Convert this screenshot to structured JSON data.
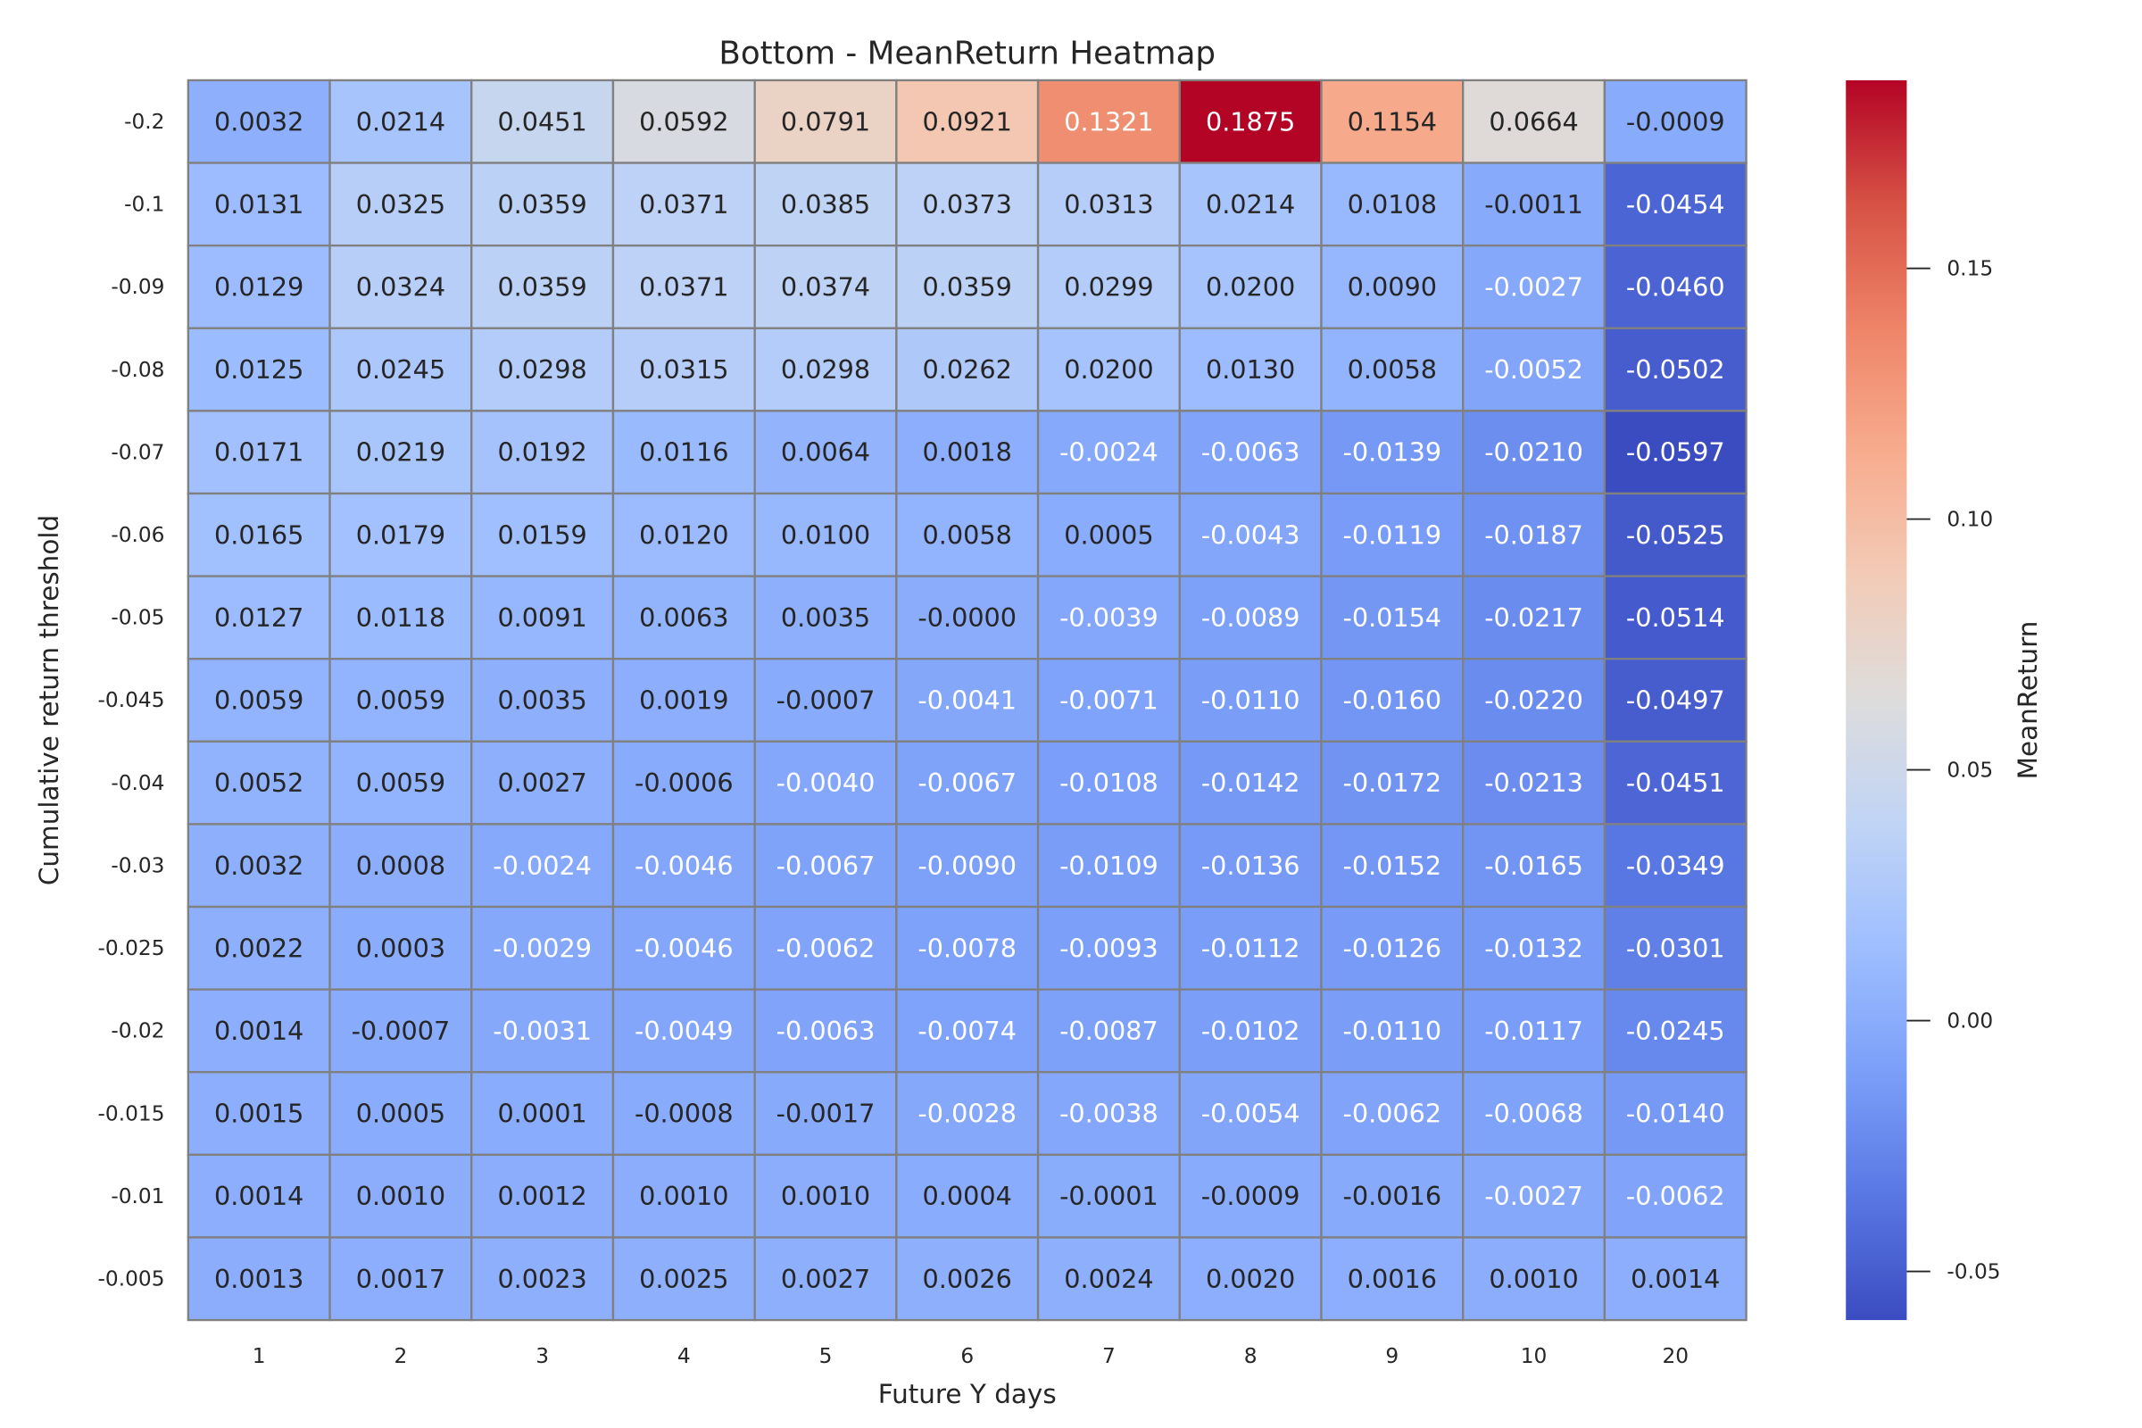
{
  "chart_data": {
    "type": "heatmap",
    "title": "Bottom - MeanReturn Heatmap",
    "xlabel": "Future Y days",
    "ylabel": "Cumulative return threshold",
    "colorbar_label": "MeanReturn",
    "colormap": "coolwarm",
    "vmin": -0.0597,
    "vmax": 0.1875,
    "colorbar_ticks": [
      0.15,
      0.1,
      0.05,
      0.0,
      -0.05
    ],
    "colorbar_tick_labels": [
      "0.15",
      "0.10",
      "0.05",
      "0.00",
      "-0.05"
    ],
    "x": [
      "1",
      "2",
      "3",
      "4",
      "5",
      "6",
      "7",
      "8",
      "9",
      "10",
      "20"
    ],
    "y": [
      "-0.2",
      "-0.1",
      "-0.09",
      "-0.08",
      "-0.07",
      "-0.06",
      "-0.05",
      "-0.045",
      "-0.04",
      "-0.03",
      "-0.025",
      "-0.02",
      "-0.015",
      "-0.01",
      "-0.005"
    ],
    "values": [
      [
        0.0032,
        0.0214,
        0.0451,
        0.0592,
        0.0791,
        0.0921,
        0.1321,
        0.1875,
        0.1154,
        0.0664,
        -0.0009
      ],
      [
        0.0131,
        0.0325,
        0.0359,
        0.0371,
        0.0385,
        0.0373,
        0.0313,
        0.0214,
        0.0108,
        -0.0011,
        -0.0454
      ],
      [
        0.0129,
        0.0324,
        0.0359,
        0.0371,
        0.0374,
        0.0359,
        0.0299,
        0.02,
        0.009,
        -0.0027,
        -0.046
      ],
      [
        0.0125,
        0.0245,
        0.0298,
        0.0315,
        0.0298,
        0.0262,
        0.02,
        0.013,
        0.0058,
        -0.0052,
        -0.0502
      ],
      [
        0.0171,
        0.0219,
        0.0192,
        0.0116,
        0.0064,
        0.0018,
        -0.0024,
        -0.0063,
        -0.0139,
        -0.021,
        -0.0597
      ],
      [
        0.0165,
        0.0179,
        0.0159,
        0.012,
        0.01,
        0.0058,
        0.0005,
        -0.0043,
        -0.0119,
        -0.0187,
        -0.0525
      ],
      [
        0.0127,
        0.0118,
        0.0091,
        0.0063,
        0.0035,
        -0.0,
        -0.0039,
        -0.0089,
        -0.0154,
        -0.0217,
        -0.0514
      ],
      [
        0.0059,
        0.0059,
        0.0035,
        0.0019,
        -0.0007,
        -0.0041,
        -0.0071,
        -0.011,
        -0.016,
        -0.022,
        -0.0497
      ],
      [
        0.0052,
        0.0059,
        0.0027,
        -0.0006,
        -0.004,
        -0.0067,
        -0.0108,
        -0.0142,
        -0.0172,
        -0.0213,
        -0.0451
      ],
      [
        0.0032,
        0.0008,
        -0.0024,
        -0.0046,
        -0.0067,
        -0.009,
        -0.0109,
        -0.0136,
        -0.0152,
        -0.0165,
        -0.0349
      ],
      [
        0.0022,
        0.0003,
        -0.0029,
        -0.0046,
        -0.0062,
        -0.0078,
        -0.0093,
        -0.0112,
        -0.0126,
        -0.0132,
        -0.0301
      ],
      [
        0.0014,
        -0.0007,
        -0.0031,
        -0.0049,
        -0.0063,
        -0.0074,
        -0.0087,
        -0.0102,
        -0.011,
        -0.0117,
        -0.0245
      ],
      [
        0.0015,
        0.0005,
        0.0001,
        -0.0008,
        -0.0017,
        -0.0028,
        -0.0038,
        -0.0054,
        -0.0062,
        -0.0068,
        -0.014
      ],
      [
        0.0014,
        0.001,
        0.0012,
        0.001,
        0.001,
        0.0004,
        -0.0001,
        -0.0009,
        -0.0016,
        -0.0027,
        -0.0062
      ],
      [
        0.0013,
        0.0017,
        0.0023,
        0.0025,
        0.0027,
        0.0026,
        0.0024,
        0.002,
        0.0016,
        0.001,
        0.0014
      ]
    ]
  }
}
